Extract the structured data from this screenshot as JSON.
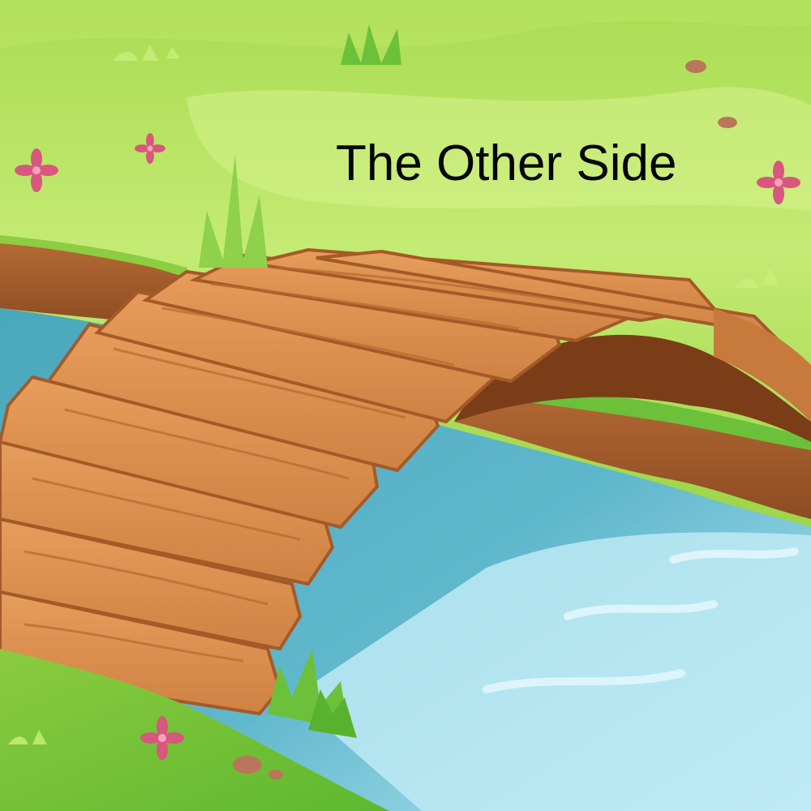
{
  "caption": {
    "title": "The Other Side"
  },
  "palette": {
    "grass_light": "#c9ef7a",
    "grass_mid": "#9fd64a",
    "grass_dark": "#5eb82f",
    "water_dark": "#3f9fb3",
    "water_light": "#bdeaf5",
    "wood": "#d98b4b",
    "wood_edge": "#a45a28",
    "flower": "#d8577e",
    "stone": "#b9765a"
  },
  "icons": [
    "flower-icon",
    "grass-tuft-icon",
    "stone-icon"
  ]
}
